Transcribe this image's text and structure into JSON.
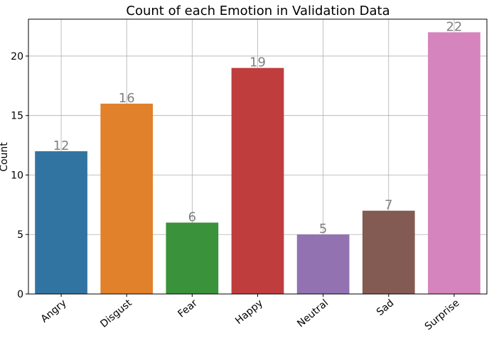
{
  "chart_data": {
    "type": "bar",
    "title": "Count of each Emotion in Validation Data",
    "xlabel": "",
    "ylabel": "Count",
    "categories": [
      "Angry",
      "Disgust",
      "Fear",
      "Happy",
      "Neutral",
      "Sad",
      "Surprise"
    ],
    "values": [
      12,
      16,
      6,
      19,
      5,
      7,
      22
    ],
    "colors": [
      "#3274a1",
      "#e1812c",
      "#3a923a",
      "#c03d3e",
      "#9372b2",
      "#845b53",
      "#d684bd"
    ],
    "ylim": [
      0,
      23.1
    ],
    "yticks": [
      0,
      5,
      10,
      15,
      20
    ],
    "grid": true,
    "legend": "none",
    "data_labels": [
      "12",
      "16",
      "6",
      "19",
      "5",
      "7",
      "22"
    ]
  }
}
